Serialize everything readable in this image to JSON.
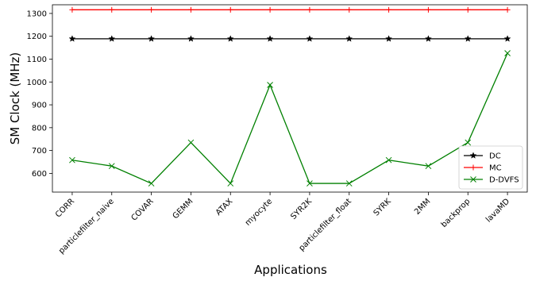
{
  "chart_data": {
    "type": "line",
    "title": "",
    "xlabel": "Applications",
    "ylabel": "SM Clock (MHz)",
    "categories": [
      "CORR",
      "particlefilter_naive",
      "COVAR",
      "GEMM",
      "ATAX",
      "myocyte",
      "SYR2K",
      "particlefilter_float",
      "SYRK",
      "2MM",
      "backprop",
      "lavaMD"
    ],
    "yticks": [
      600,
      700,
      800,
      900,
      1000,
      1100,
      1200,
      1300
    ],
    "ylim": [
      518,
      1338
    ],
    "grid": false,
    "legend_position": "lower-right",
    "series": [
      {
        "name": "DC",
        "marker": "star",
        "color": "#000000",
        "values": [
          1189,
          1189,
          1189,
          1189,
          1189,
          1189,
          1189,
          1189,
          1189,
          1189,
          1189,
          1189
        ]
      },
      {
        "name": "MC",
        "marker": "plus",
        "color": "#ff0000",
        "values": [
          1316,
          1316,
          1316,
          1316,
          1316,
          1316,
          1316,
          1316,
          1316,
          1316,
          1316,
          1316
        ]
      },
      {
        "name": "D-DVFS",
        "marker": "x",
        "color": "#008000",
        "values": [
          658,
          632,
          556,
          735,
          556,
          987,
          556,
          556,
          658,
          632,
          735,
          1126
        ]
      }
    ]
  }
}
